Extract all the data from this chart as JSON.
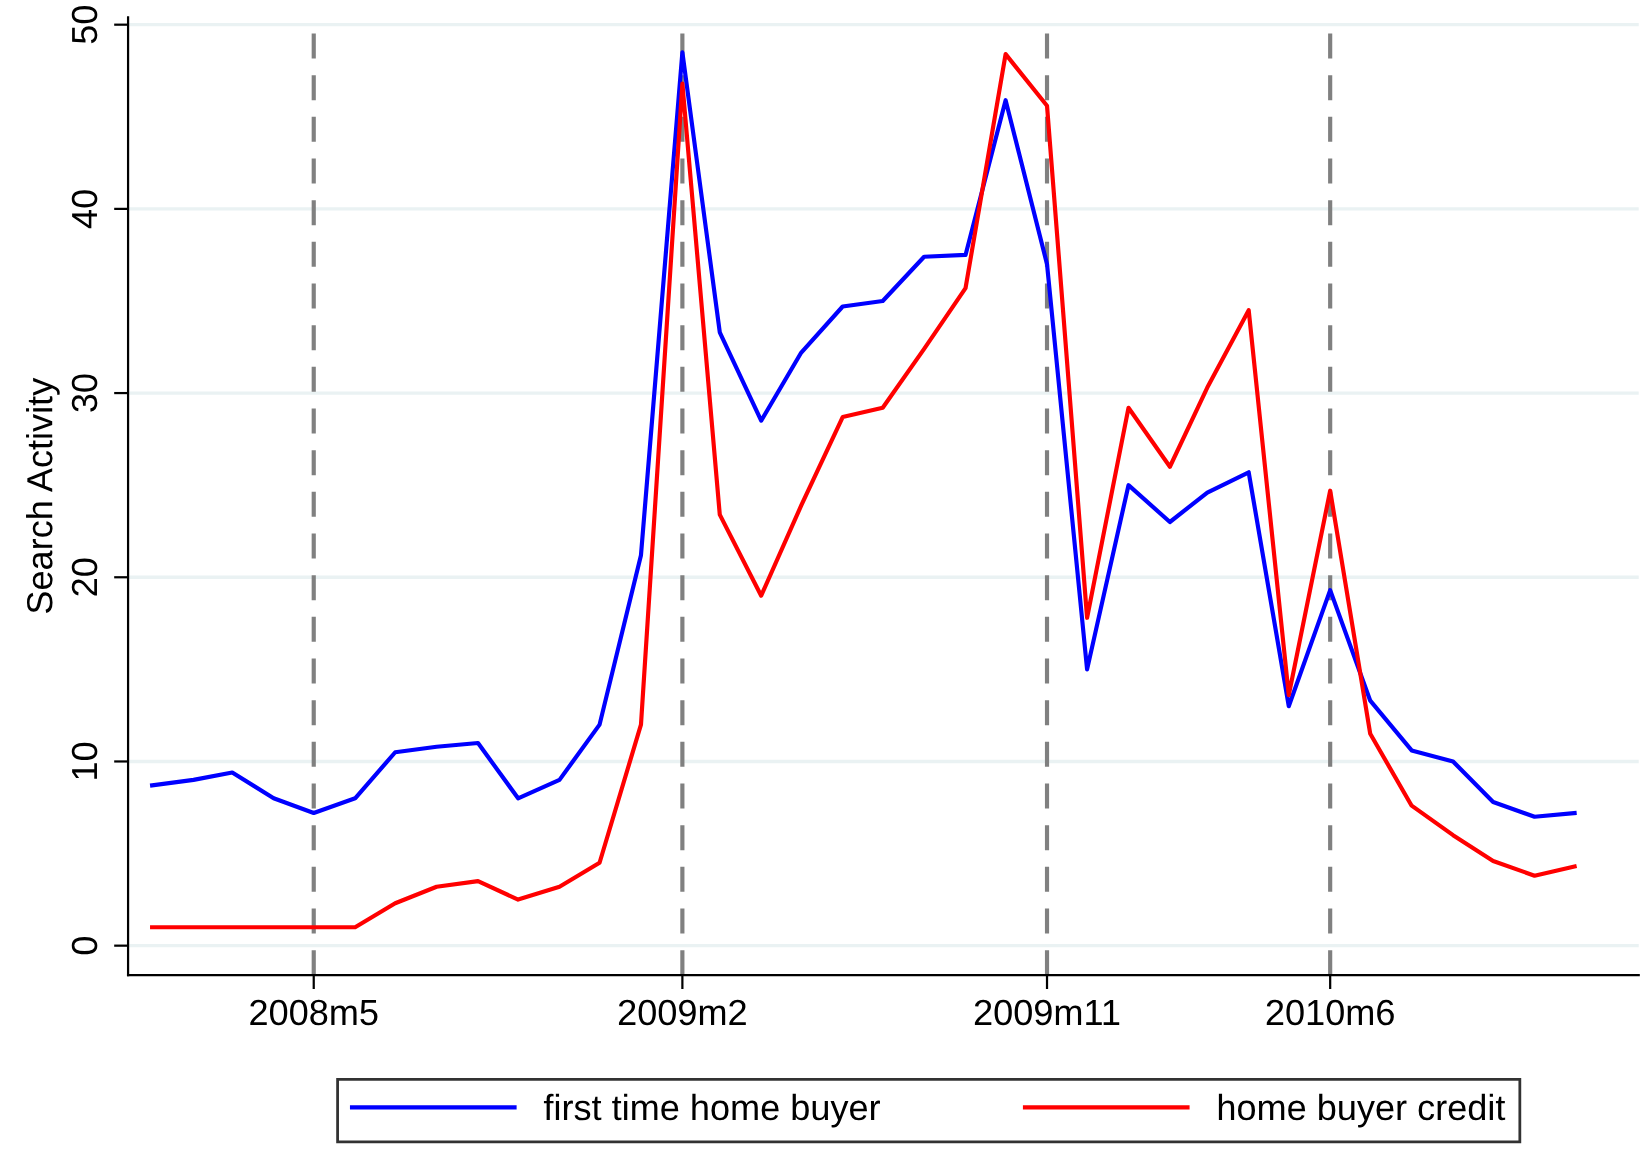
{
  "chart_data": {
    "type": "line",
    "ylabel": "Search Activity",
    "x": [
      "2008-01",
      "2008-02",
      "2008-03",
      "2008-04",
      "2008-05",
      "2008-06",
      "2008-07",
      "2008-08",
      "2008-09",
      "2008-10",
      "2008-11",
      "2008-12",
      "2009-01",
      "2009-02",
      "2009-03",
      "2009-04",
      "2009-05",
      "2009-06",
      "2009-07",
      "2009-08",
      "2009-09",
      "2009-10",
      "2009-11",
      "2009-12",
      "2010-01",
      "2010-02",
      "2010-03",
      "2010-04",
      "2010-05",
      "2010-06",
      "2010-07",
      "2010-08",
      "2010-09",
      "2010-10",
      "2010-11",
      "2010-12"
    ],
    "series": [
      {
        "name": "first time home buyer",
        "color": "#0000ff",
        "values": [
          8.7,
          9.0,
          9.4,
          8.0,
          7.2,
          8.0,
          10.5,
          10.8,
          11.0,
          8.0,
          9.0,
          12.0,
          21.2,
          48.5,
          33.3,
          28.5,
          32.2,
          34.7,
          35.0,
          37.4,
          37.5,
          45.9,
          37.0,
          15.0,
          25.0,
          23.0,
          24.6,
          25.7,
          13.0,
          19.3,
          13.3,
          10.6,
          10.0,
          7.8,
          7.0,
          7.2
        ]
      },
      {
        "name": "home buyer credit",
        "color": "#ff0000",
        "values": [
          1.0,
          1.0,
          1.0,
          1.0,
          1.0,
          1.0,
          2.3,
          3.2,
          3.5,
          2.5,
          3.2,
          4.5,
          12.0,
          46.8,
          23.4,
          19.0,
          23.9,
          28.7,
          29.2,
          32.4,
          35.7,
          48.4,
          45.6,
          17.8,
          29.2,
          26.0,
          30.3,
          34.5,
          13.6,
          24.7,
          11.5,
          7.6,
          6.0,
          4.6,
          3.8,
          4.3
        ]
      }
    ],
    "xlim": [
      "2007-12-14",
      "2011-01-18"
    ],
    "xticks": [
      {
        "value": "2008-05",
        "label": "2008m5"
      },
      {
        "value": "2009-02",
        "label": "2009m2"
      },
      {
        "value": "2009-11",
        "label": "2009m11"
      },
      {
        "value": "2010-06",
        "label": "2010m6"
      }
    ],
    "ylim": [
      -1.6,
      50.4
    ],
    "yticks": [
      0,
      10,
      20,
      30,
      40,
      50
    ],
    "ref_lines": [
      {
        "axis": "x",
        "value": "2008-05",
        "color": "#808080",
        "line_style": "dashed"
      },
      {
        "axis": "x",
        "value": "2009-02",
        "color": "#808080",
        "line_style": "dashed"
      },
      {
        "axis": "x",
        "value": "2009-11",
        "color": "#808080",
        "line_style": "dashed"
      },
      {
        "axis": "x",
        "value": "2010-06",
        "color": "#808080",
        "line_style": "dashed"
      }
    ],
    "grid": "y",
    "legend": "bottom",
    "marker": "none",
    "line_style": "solid"
  }
}
